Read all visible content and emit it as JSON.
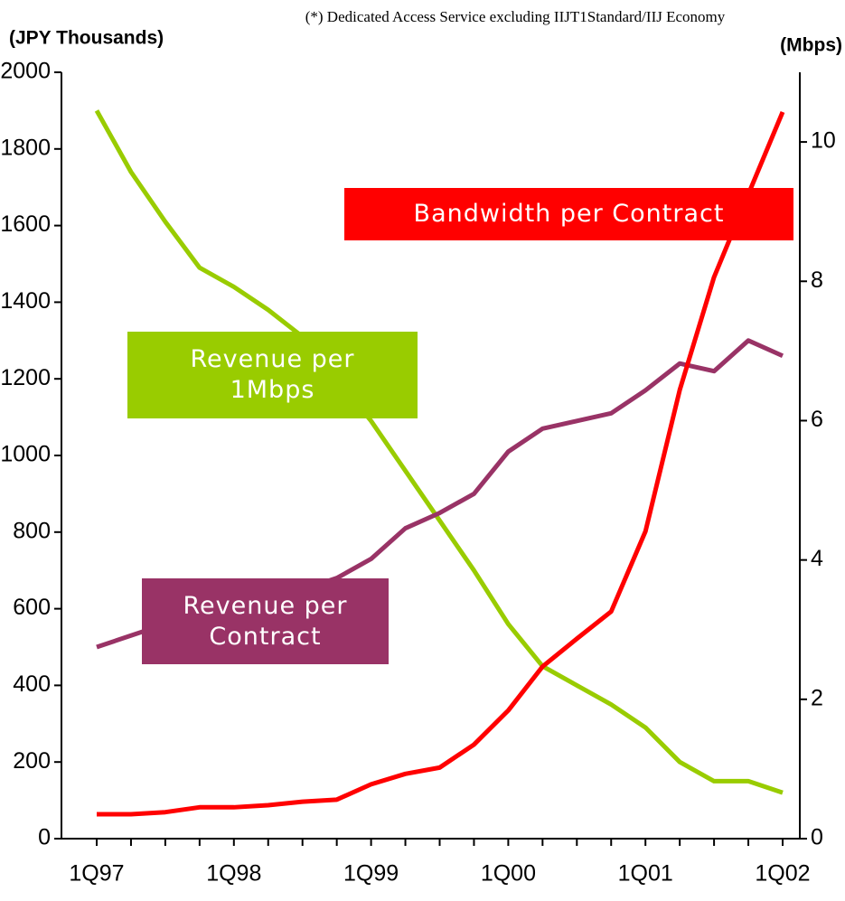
{
  "chart_data": {
    "type": "line",
    "note": "(*) Dedicated Access Service excluding  IIJT1Standard/IIJ Economy",
    "y_label": "(JPY Thousands)",
    "y2_label": "(Mbps)",
    "categories": [
      "1Q97",
      null,
      null,
      null,
      "1Q98",
      null,
      null,
      null,
      "1Q99",
      null,
      null,
      null,
      "1Q00",
      null,
      null,
      null,
      "1Q01",
      null,
      null,
      null,
      "1Q02"
    ],
    "ylim": [
      0,
      2000
    ],
    "yticks": [
      0,
      200,
      400,
      600,
      800,
      1000,
      1200,
      1400,
      1600,
      1800,
      2000
    ],
    "y2lim": [
      0,
      11
    ],
    "y2ticks": [
      0,
      2,
      4,
      6,
      8,
      10
    ],
    "series": [
      {
        "name": "Revenue per 1Mbps",
        "color": "#99cc00",
        "values": [
          1900,
          1740,
          1610,
          1490,
          1440,
          1380,
          1310,
          1200,
          1090,
          960,
          830,
          700,
          560,
          450,
          400,
          350,
          290,
          200,
          150,
          150,
          120
        ]
      },
      {
        "name": "Revenue per Contract",
        "color": "#993366",
        "values": [
          500,
          530,
          560,
          590,
          610,
          630,
          650,
          680,
          730,
          810,
          850,
          900,
          1010,
          1070,
          1090,
          1110,
          1170,
          1240,
          1220,
          1300,
          1260
        ]
      },
      {
        "name": "Bandwidth per Contract",
        "color": "#ff0000",
        "axis": "y2",
        "values": [
          0.35,
          0.35,
          0.38,
          0.45,
          0.45,
          0.48,
          0.53,
          0.56,
          0.78,
          0.93,
          1.02,
          1.35,
          1.84,
          2.47,
          2.87,
          3.26,
          4.41,
          6.44,
          8.06,
          9.25,
          10.43
        ]
      }
    ]
  }
}
